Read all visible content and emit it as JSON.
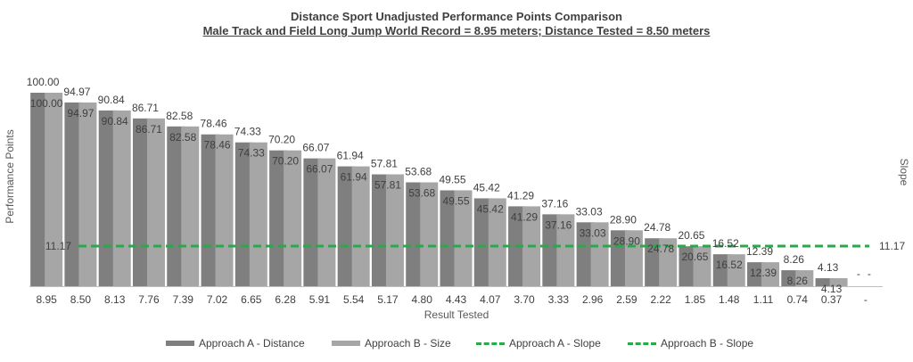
{
  "chart_data": {
    "type": "bar",
    "title": "Distance Sport Unadjusted Performance Points Comparison",
    "subtitle": "Male Track and Field Long Jump World Record = 8.95 meters; Distance Tested = 8.50 meters",
    "xlabel": "Result Tested",
    "ylabel": "Performance Points",
    "y2label": "Slope",
    "categories": [
      "8.95",
      "8.50",
      "8.13",
      "7.76",
      "7.39",
      "7.02",
      "6.65",
      "6.28",
      "5.91",
      "5.54",
      "5.17",
      "4.80",
      "4.43",
      "4.07",
      "3.70",
      "3.33",
      "2.96",
      "2.59",
      "2.22",
      "1.85",
      "1.48",
      "1.11",
      "0.74",
      "0.37",
      "-"
    ],
    "ylim": [
      0,
      100
    ],
    "series": [
      {
        "name": "Approach A - Distance",
        "color": "#7f7f7f",
        "values": [
          100.0,
          94.97,
          90.84,
          86.71,
          82.58,
          78.46,
          74.33,
          70.2,
          66.07,
          61.94,
          57.81,
          53.68,
          49.55,
          45.42,
          41.29,
          37.16,
          33.03,
          28.9,
          24.78,
          20.65,
          16.52,
          12.39,
          8.26,
          4.13,
          null
        ],
        "labels": [
          "100.00",
          "94.97",
          "90.84",
          "86.71",
          "82.58",
          "78.46",
          "74.33",
          "70.20",
          "66.07",
          "61.94",
          "57.81",
          "53.68",
          "49.55",
          "45.42",
          "41.29",
          "37.16",
          "33.03",
          "28.90",
          "24.78",
          "20.65",
          "16.52",
          "12.39",
          "8.26",
          "4.13",
          "-"
        ]
      },
      {
        "name": "Approach B - Size",
        "color": "#a6a6a6",
        "values": [
          100.0,
          94.97,
          90.84,
          86.71,
          82.58,
          78.46,
          74.33,
          70.2,
          66.07,
          61.94,
          57.81,
          53.68,
          49.55,
          45.42,
          41.29,
          37.16,
          33.03,
          28.9,
          24.78,
          20.65,
          16.52,
          12.39,
          8.26,
          4.13,
          null
        ],
        "labels": [
          "100.00",
          "94.97",
          "90.84",
          "86.71",
          "82.58",
          "78.46",
          "74.33",
          "70.20",
          "66.07",
          "61.94",
          "57.81",
          "53.68",
          "49.55",
          "45.42",
          "41.29",
          "37.16",
          "33.03",
          "28.90",
          "24.78",
          "20.65",
          "16.52",
          "12.39",
          "8.26",
          "4.13",
          "-"
        ]
      }
    ],
    "slope_lines": [
      {
        "name": "Approach A - Slope",
        "color": "#2aa84a",
        "value": 11.17,
        "label": "11.17"
      },
      {
        "name": "Approach B - Slope",
        "color": "#2aa84a",
        "value": 11.17,
        "label": "11.17"
      }
    ],
    "grid": false,
    "legend_position": "bottom"
  }
}
